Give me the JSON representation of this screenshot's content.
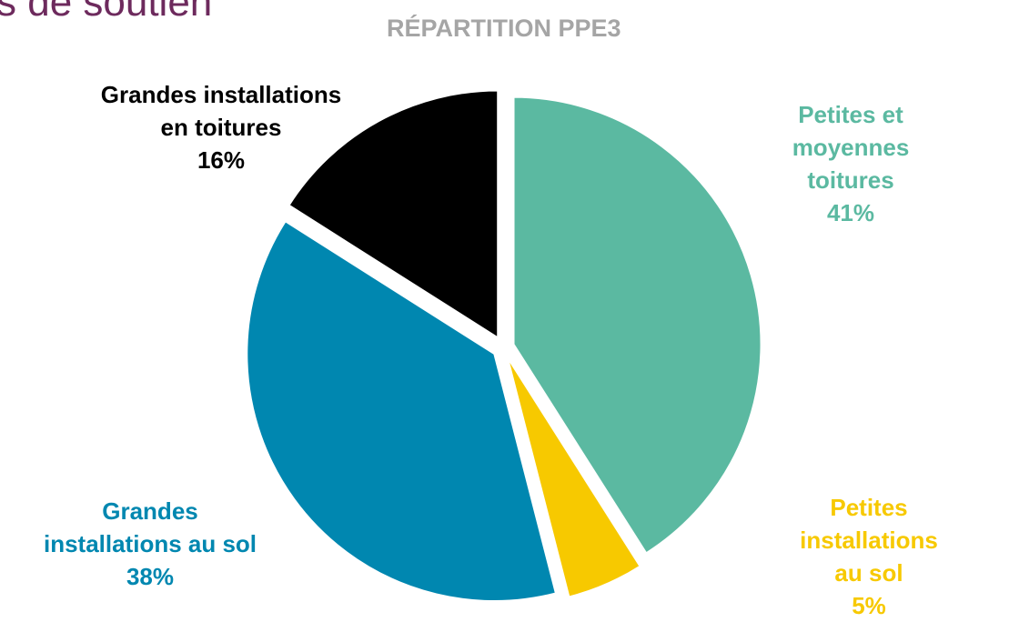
{
  "page_title": "s de soutien",
  "chart_data": {
    "type": "pie",
    "title": "RÉPARTITION PPE3",
    "categories": [
      "Petites et\nmoyennes toitures",
      "Petites\ninstallations au sol",
      "Grandes\ninstallations au sol",
      "Grandes installations\nen toitures"
    ],
    "values": [
      41,
      5,
      38,
      16
    ],
    "value_labels": [
      "41%",
      "5%",
      "38%",
      "16%"
    ],
    "colors": [
      "#5bb9a1",
      "#f7c900",
      "#0087b0",
      "#000000"
    ],
    "label_colors": [
      "#5bb9a1",
      "#f7c900",
      "#0087b0",
      "#000000"
    ]
  }
}
